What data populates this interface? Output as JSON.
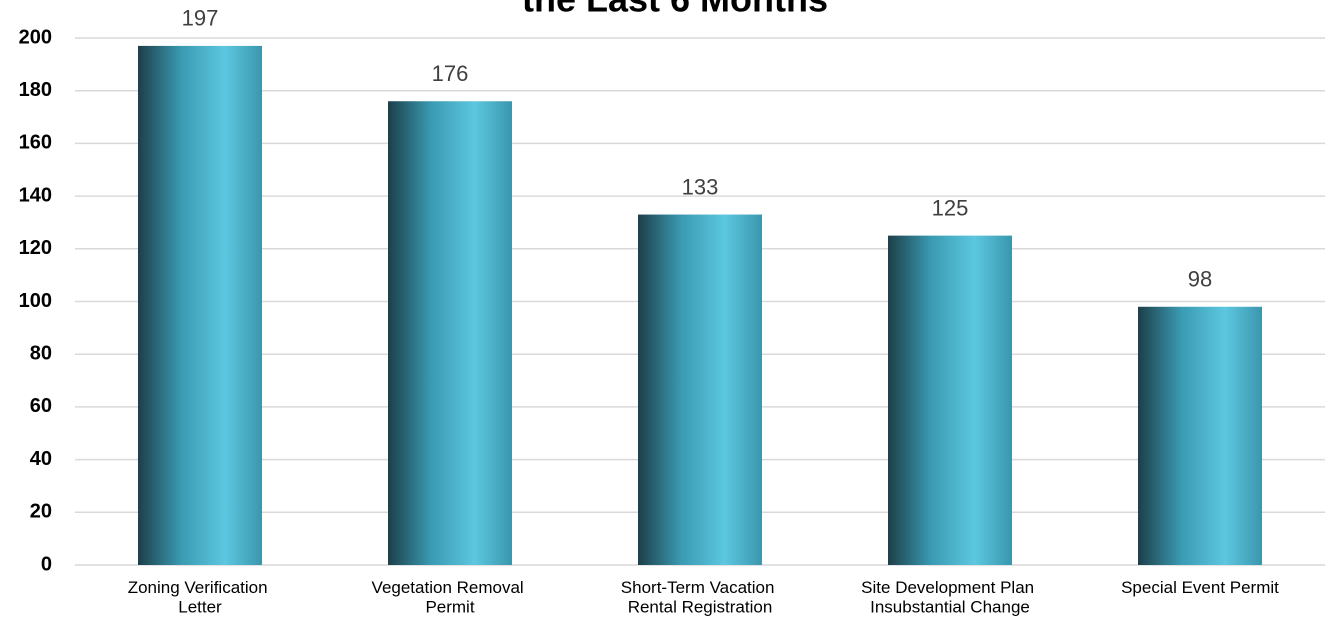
{
  "chart_data": {
    "type": "bar",
    "title": "the Last 6 Months",
    "categories": [
      "Zoning Verification Letter",
      "Vegetation Removal Permit",
      "Short-Term Vacation Rental Registration",
      "Site Development Plan Insubstantial Change",
      "Special Event Permit"
    ],
    "values": [
      197,
      176,
      133,
      125,
      98
    ],
    "color": "#3fa9c2",
    "ylim": [
      0,
      200
    ],
    "yticks": [
      0,
      20,
      40,
      60,
      80,
      100,
      120,
      140,
      160,
      180,
      200
    ],
    "grid": true
  }
}
